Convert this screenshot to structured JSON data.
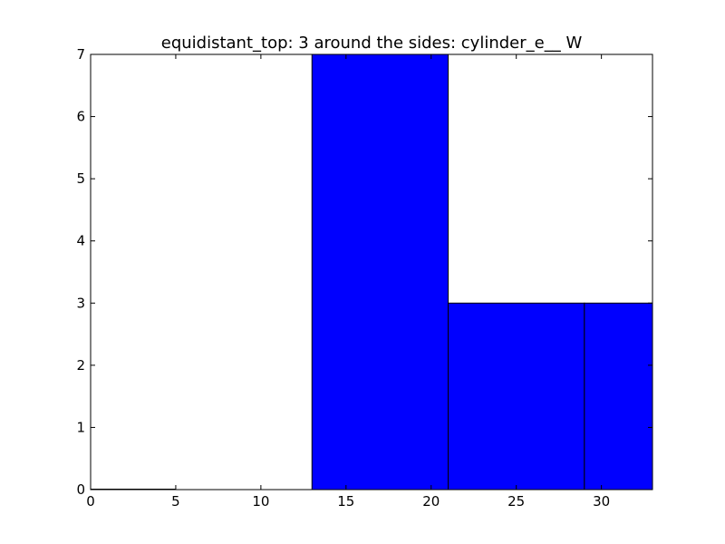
{
  "chart_data": {
    "type": "bar",
    "title": "equidistant_top: 3 around the sides: cylinder_e__ W",
    "xlabel": "",
    "ylabel": "",
    "xlim": [
      0,
      33
    ],
    "ylim": [
      0,
      7
    ],
    "grid": false,
    "bar_color": "#0000ff",
    "edge_color": "#000000",
    "bins": [
      {
        "x0": 0,
        "x1": 5,
        "value": 0
      },
      {
        "x0": 13,
        "x1": 21,
        "value": 7
      },
      {
        "x0": 21,
        "x1": 29,
        "value": 3
      },
      {
        "x0": 29,
        "x1": 33,
        "value": 3
      }
    ],
    "x_ticks": [
      0,
      5,
      10,
      15,
      20,
      25,
      30
    ],
    "y_ticks": [
      0,
      1,
      2,
      3,
      4,
      5,
      6,
      7
    ]
  }
}
